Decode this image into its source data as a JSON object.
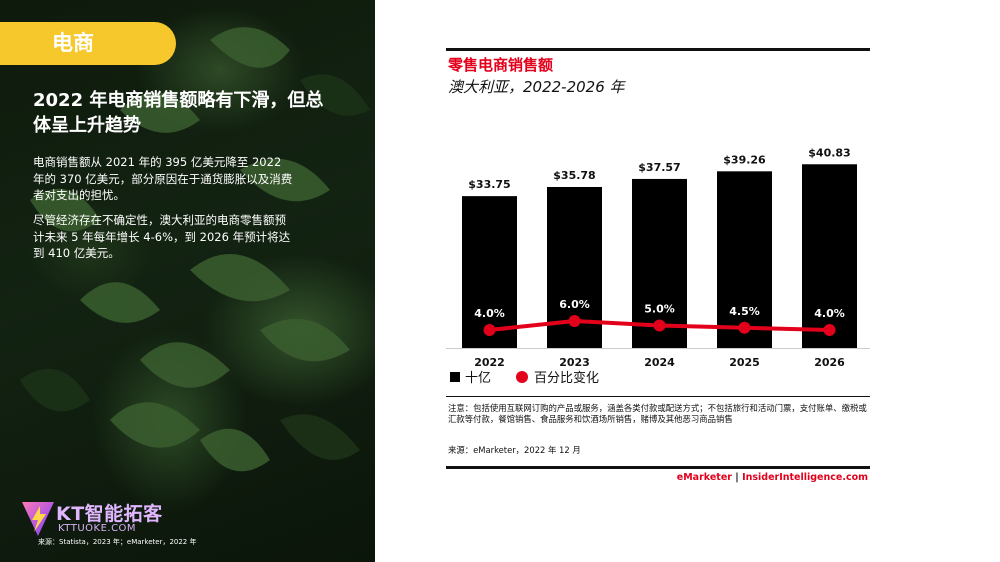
{
  "left": {
    "section_tag": "电商",
    "headline": "2022 年电商销售额略有下滑，但总体呈上升趋势",
    "paragraph1": "电商销售额从 2021 年的 395 亿美元降至 2022 年的 370 亿美元，部分原因在于通货膨胀以及消费者对支出的担忧。",
    "paragraph2": "尽管经济存在不确定性，澳大利亚的电商零售额预计未来 5 年每年增长 4-6%，到 2026 年预计将达到 410 亿美元。",
    "logo_text": "KT智能拓客",
    "logo_url": "KTTUOKE.COM",
    "source": "来源：Statista，2023 年；eMarketer，2022 年"
  },
  "chart_data": {
    "type": "bar",
    "title": "零售电商销售额",
    "subtitle": "澳大利亚，2022-2026 年",
    "categories": [
      "2022",
      "2023",
      "2024",
      "2025",
      "2026"
    ],
    "series": [
      {
        "name": "十亿",
        "type": "bar",
        "values": [
          33.75,
          35.78,
          37.57,
          39.26,
          40.83
        ],
        "labels": [
          "$33.75",
          "$35.78",
          "$37.57",
          "$39.26",
          "$40.83"
        ],
        "color": "#000000"
      },
      {
        "name": "百分比变化",
        "type": "line",
        "values": [
          4.0,
          6.0,
          5.0,
          4.5,
          4.0
        ],
        "labels": [
          "4.0%",
          "6.0%",
          "5.0%",
          "4.5%",
          "4.0%"
        ],
        "color": "#e3001b"
      }
    ],
    "legend_position": "bottom-left",
    "grid": false,
    "note": "注意：包括使用互联网订购的产品或服务，涵盖各类付款或配送方式；不包括旅行和活动门票，支付账单、缴税或汇款等付款，餐馆销售、食品服务和饮酒场所销售，赌博及其他恶习商品销售",
    "source": "来源：eMarketer，2022 年 12 月",
    "brand_left": "eMarketer",
    "brand_sep": "|",
    "brand_right": "InsiderIntelligence.com"
  },
  "colors": {
    "accent_yellow": "#f7c82c",
    "brand_red": "#e3001b",
    "bar_black": "#000000"
  }
}
